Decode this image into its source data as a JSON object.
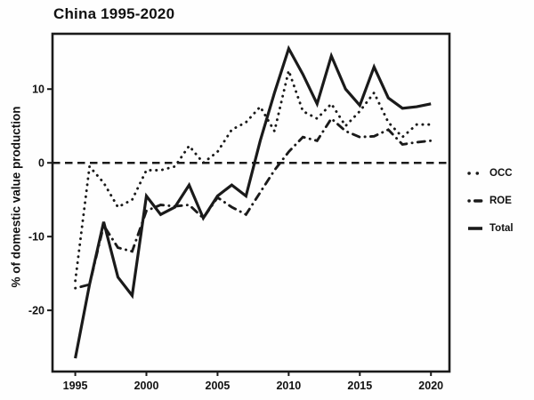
{
  "title": "China 1995-2020",
  "chart_data": {
    "type": "line",
    "title": "China 1995-2020",
    "xlabel": "",
    "ylabel": "% of domestic value production",
    "x": [
      1995,
      1996,
      1997,
      1998,
      1999,
      2000,
      2001,
      2002,
      2003,
      2004,
      2005,
      2006,
      2007,
      2008,
      2009,
      2010,
      2011,
      2012,
      2013,
      2014,
      2015,
      2016,
      2017,
      2018,
      2019,
      2020
    ],
    "xticks": [
      1995,
      2000,
      2005,
      2010,
      2015,
      2020
    ],
    "yticks": [
      10,
      0,
      -10,
      -20
    ],
    "xlim": [
      1993.4,
      2021.3
    ],
    "ylim": [
      -28.3,
      17.5
    ],
    "grid": false,
    "zero_reference_line": 0,
    "legend_position": "right-outside",
    "line_color": "#1a1a1a",
    "series": [
      {
        "name": "OCC",
        "style": "dotted",
        "values": [
          -16,
          -0.5,
          -2.7,
          -6,
          -5,
          -1,
          -1,
          -0.5,
          2.3,
          0,
          1.5,
          4.5,
          5.5,
          7.6,
          4.3,
          12.5,
          7,
          6,
          8,
          5,
          7,
          9.5,
          5.5,
          3.5,
          5.2,
          5.2
        ]
      },
      {
        "name": "ROE",
        "style": "dash-dot",
        "values": [
          -17,
          -16.5,
          -8.5,
          -11.5,
          -12,
          -6.5,
          -5.7,
          -5.9,
          -5.7,
          -7.5,
          -4.7,
          -6,
          -7,
          -4,
          -1,
          1.5,
          3.5,
          3,
          6,
          4.3,
          3.5,
          3.6,
          4.5,
          2.5,
          2.8,
          3
        ]
      },
      {
        "name": "Total",
        "style": "solid",
        "values": [
          -26.5,
          -16.5,
          -8,
          -15.5,
          -18,
          -4.5,
          -7,
          -6,
          -3,
          -7.5,
          -4.5,
          -3,
          -4.5,
          3,
          9.5,
          15.5,
          12,
          8,
          14.5,
          10,
          7.8,
          13,
          8.8,
          7.4,
          7.6,
          8
        ]
      }
    ]
  }
}
